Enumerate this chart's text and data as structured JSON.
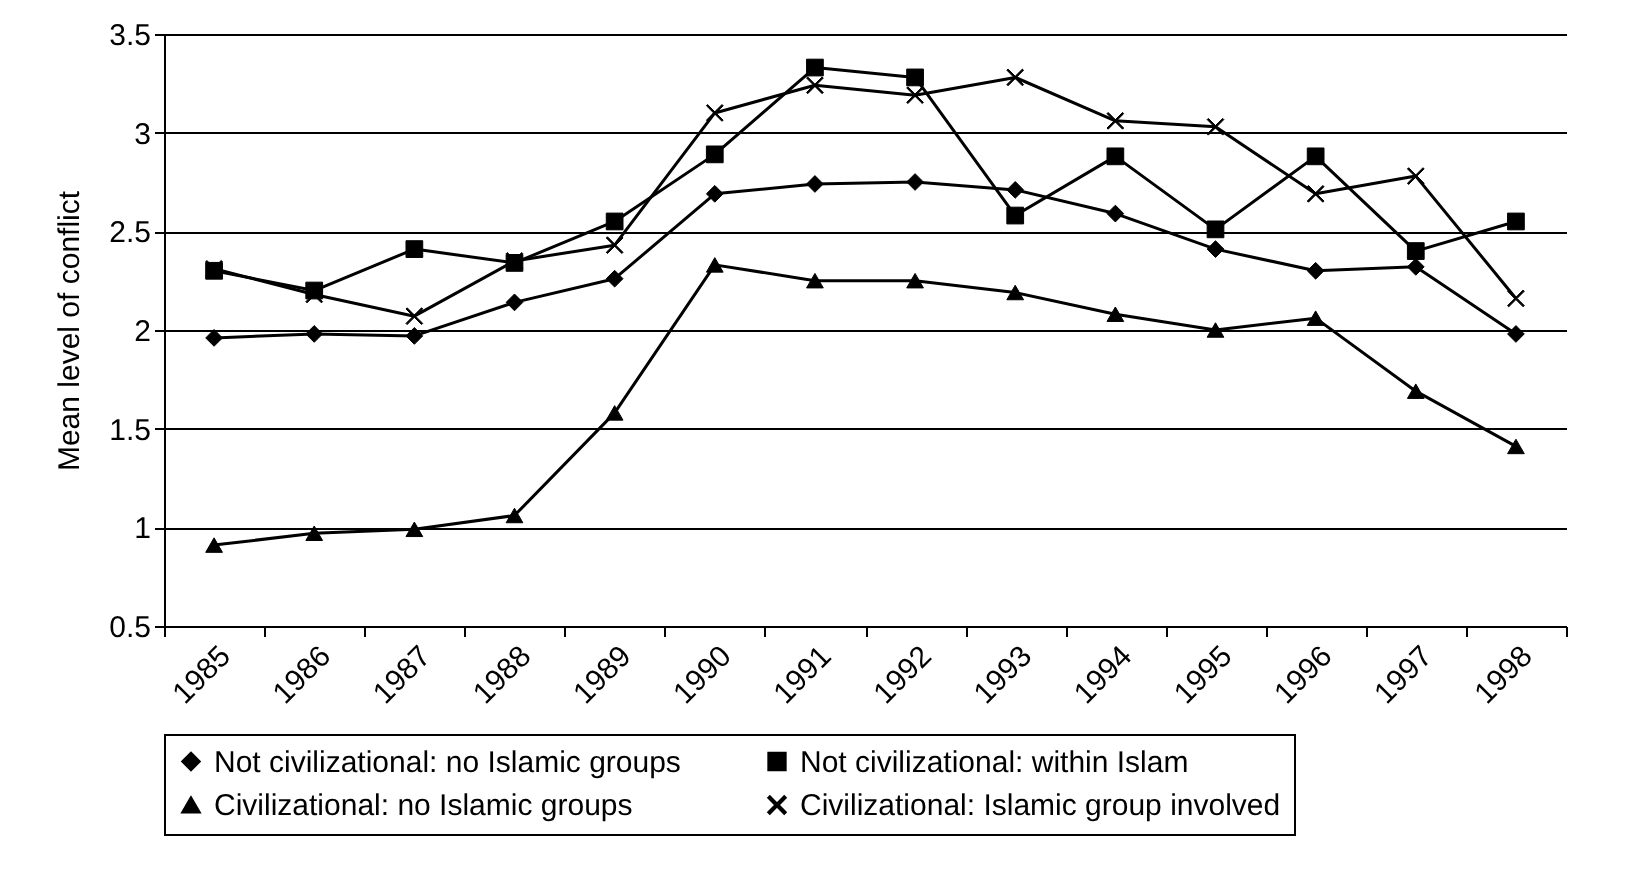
{
  "chart_data": {
    "type": "line",
    "ylabel": "Mean level of conflict",
    "categories": [
      "1985",
      "1986",
      "1987",
      "1988",
      "1989",
      "1990",
      "1991",
      "1992",
      "1993",
      "1994",
      "1995",
      "1996",
      "1997",
      "1998"
    ],
    "series": [
      {
        "name": "Not civilizational: no Islamic groups",
        "color": "#000000",
        "marker": "diamond",
        "values": [
          1.96,
          1.98,
          1.97,
          2.14,
          2.26,
          2.69,
          2.74,
          2.75,
          2.71,
          2.59,
          2.41,
          2.3,
          2.32,
          1.98
        ]
      },
      {
        "name": "Not civilizational: within Islam",
        "color": "#000000",
        "marker": "square",
        "values": [
          2.3,
          2.2,
          2.41,
          2.34,
          2.55,
          2.89,
          3.33,
          3.28,
          2.58,
          2.88,
          2.51,
          2.88,
          2.4,
          2.55
        ]
      },
      {
        "name": "Civilizational: no Islamic groups",
        "color": "#000000",
        "marker": "triangle",
        "values": [
          0.91,
          0.97,
          0.99,
          1.06,
          1.58,
          2.33,
          2.25,
          2.25,
          2.19,
          2.08,
          2.0,
          2.06,
          1.69,
          1.41
        ]
      },
      {
        "name": "Civilizational: Islamic group involved",
        "color": "#000000",
        "marker": "cross",
        "values": [
          2.31,
          2.18,
          2.07,
          2.35,
          2.43,
          3.1,
          3.24,
          3.19,
          3.28,
          3.06,
          3.03,
          2.69,
          2.78,
          2.16
        ]
      }
    ],
    "ylim": [
      0.5,
      3.5
    ],
    "yticks": [
      0.5,
      1,
      1.5,
      2,
      2.5,
      3,
      3.5
    ],
    "grid": "y",
    "legend": "bottom",
    "line_style": "solid"
  }
}
